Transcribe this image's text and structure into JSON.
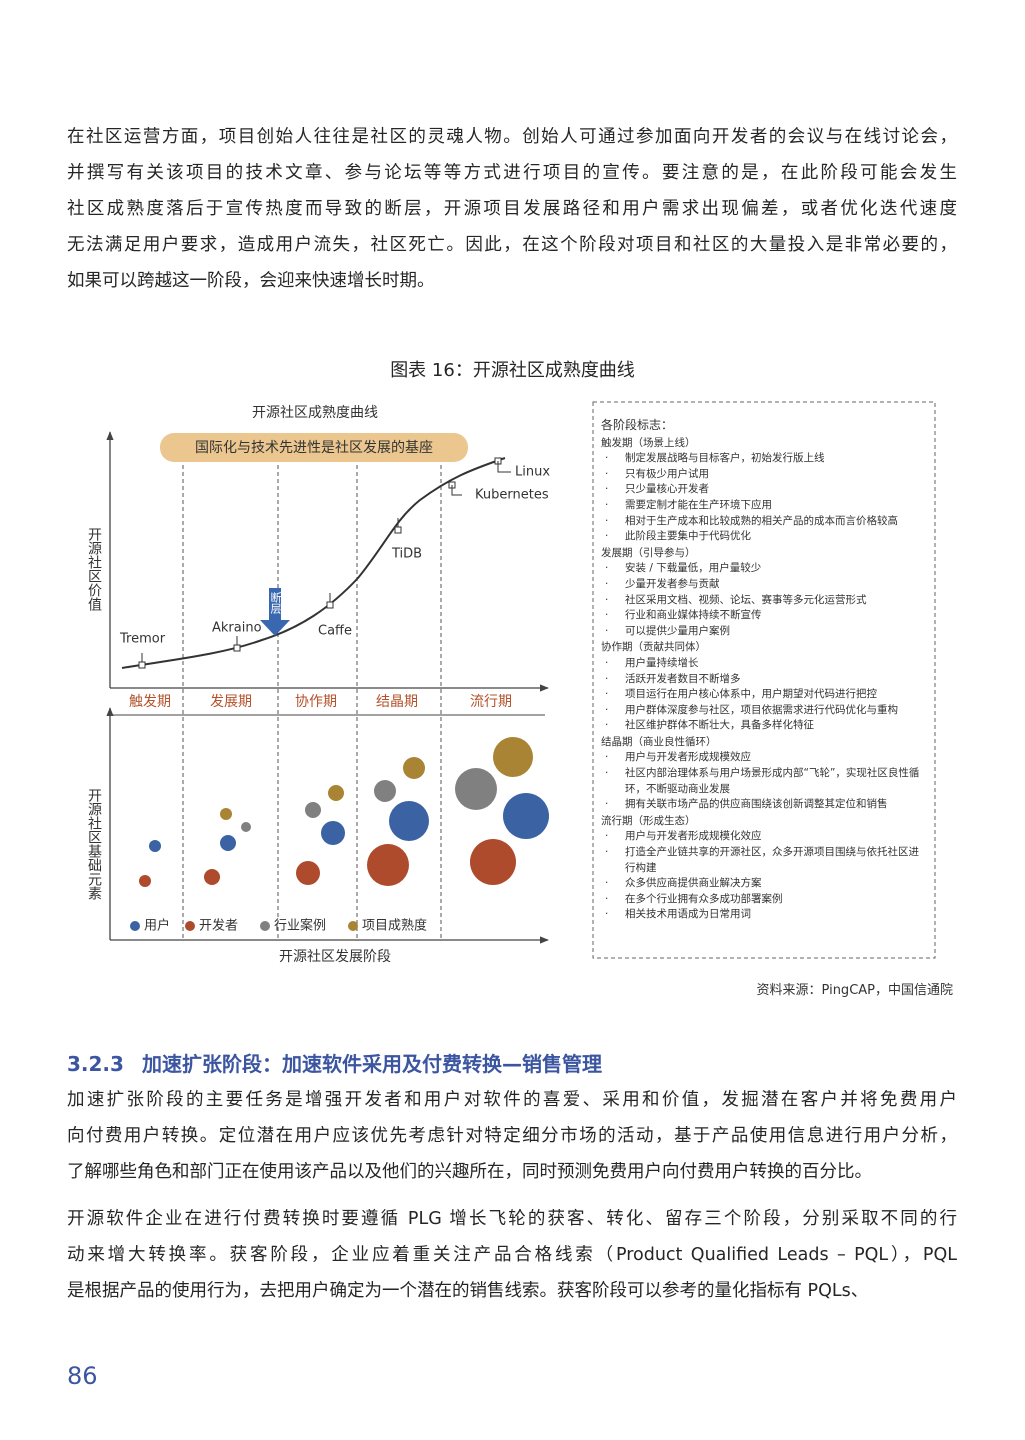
{
  "intro": {
    "lines": [
      "在社区运营方面，项目创始人往往是社区的灵魂人物。创始人可通过参加面向开发者的会议与在线讨论会，",
      "并撰写有关该项目的技术文章、参与论坛等等方式进行项目的宣传。要注意的是，在此阶段可能会发生",
      "社区成熟度落后于宣传热度而导致的断层，开源项目发展路径和用户需求出现偏差，或者优化迭代速度",
      "无法满足用户要求，造成用户流失，社区死亡。因此，在这个阶段对项目和社区的大量投入是非常必要的，",
      "如果可以跨越这一阶段，会迎来快速增长时期。"
    ]
  },
  "figure": {
    "caption": "图表 16：开源社区成熟度曲线",
    "diagram": {
      "title": "开源社区成熟度曲线",
      "banner": "国际化与技术先进性是社区发展的基座",
      "y_label_top": "开源社区价值",
      "y_label_bottom": "开源社区基础元素",
      "x_label": "开源社区发展阶段",
      "stages": [
        "触发期",
        "发展期",
        "协作期",
        "结晶期",
        "流行期"
      ],
      "projects": [
        "Tremor",
        "Akraino",
        "Caffe",
        "TiDB",
        "Kubernetes",
        "Linux"
      ],
      "gap_label": "断层",
      "legend": [
        "用户",
        "开发者",
        "行业案例",
        "项目成熟度"
      ]
    },
    "markers": {
      "heading": "各阶段标志：",
      "phases": [
        {
          "title": "触发期（场景上线）",
          "items": [
            "制定发展战略与目标客户，初始发行版上线",
            "只有极少用户试用",
            "只少量核心开发者",
            "需要定制才能在生产环境下应用",
            "相对于生产成本和比较成熟的相关产品的成本而言价格较高",
            "此阶段主要集中于代码优化"
          ]
        },
        {
          "title": "发展期（引导参与）",
          "items": [
            "安装 / 下载量低，用户量较少",
            "少量开发者参与贡献",
            "社区采用文档、视频、论坛、赛事等多元化运营形式",
            "行业和商业媒体持续不断宣传",
            "可以提供少量用户案例"
          ]
        },
        {
          "title": "协作期（贡献共同体）",
          "items": [
            "用户量持续增长",
            "活跃开发者数目不断增多",
            "项目运行在用户核心体系中，用户期望对代码进行把控",
            "用户群体深度参与社区，项目依据需求进行代码优化与重构",
            "社区维护群体不断壮大，具备多样化特征"
          ]
        },
        {
          "title": "结晶期（商业良性循环）",
          "items": [
            "用户与开发者形成规模效应",
            "社区内部治理体系与用户场景形成内部“飞轮”，实现社区良性循环，不断驱动商业发展",
            "拥有关联市场产品的供应商围绕该创新调整其定位和销售"
          ]
        },
        {
          "title": "流行期（形成生态）",
          "items": [
            "用户与开发者形成规模化效应",
            "打造全产业链共享的开源社区，众多开源项目围绕与依托社区进行构建",
            "众多供应商提供商业解决方案",
            "在多个行业拥有众多成功部署案例",
            "相关技术用语成为日常用词"
          ]
        }
      ]
    },
    "source": "资料来源：PingCAP，中国信通院"
  },
  "section": {
    "number": "3.2.3",
    "title": "加速扩张阶段：加速软件采用及付费转换—销售管理",
    "paragraphs": [
      {
        "lines": [
          "加速扩张阶段的主要任务是增强开发者和用户对软件的喜爱、采用和价值，发掘潜在客户并将免费用户",
          "向付费用户转换。定位潜在用户应该优先考虑针对特定细分市场的活动，基于产品使用信息进行用户分析，",
          "了解哪些角色和部门正在使用该产品以及他们的兴趣所在，同时预测免费用户向付费用户转换的百分比。"
        ]
      },
      {
        "lines": [
          "开源软件企业在进行付费转换时要遵循 PLG 增长飞轮的获客、转化、留存三个阶段，分别采取不同的行",
          "动来增大转换率。获客阶段，企业应着重关注产品合格线索（Product Qualified Leads – PQL），PQL",
          "是根据产品的使用行为，去把用户确定为一个潜在的销售线索。获客阶段可以参考的量化指标有 PQLs、"
        ]
      }
    ]
  },
  "page_number": "86"
}
